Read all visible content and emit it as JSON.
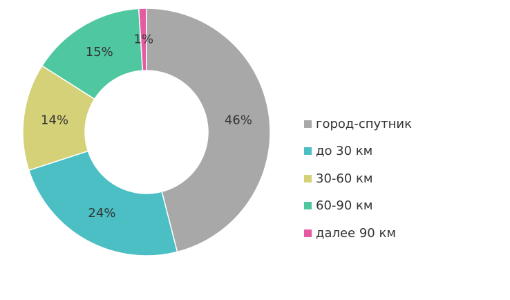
{
  "chart_data": {
    "type": "pie",
    "donut": true,
    "categories": [
      "город-спутник",
      "до 30 км",
      "30-60 км",
      "60-90 км",
      "далее 90 км"
    ],
    "values": [
      46,
      24,
      14,
      15,
      1
    ],
    "labels": [
      "46%",
      "24%",
      "14%",
      "15%",
      "1%"
    ],
    "colors": [
      "#a8a8a8",
      "#4bbfc3",
      "#d5d178",
      "#4fc7a0",
      "#e55ba2"
    ],
    "legend_placement": "right"
  }
}
